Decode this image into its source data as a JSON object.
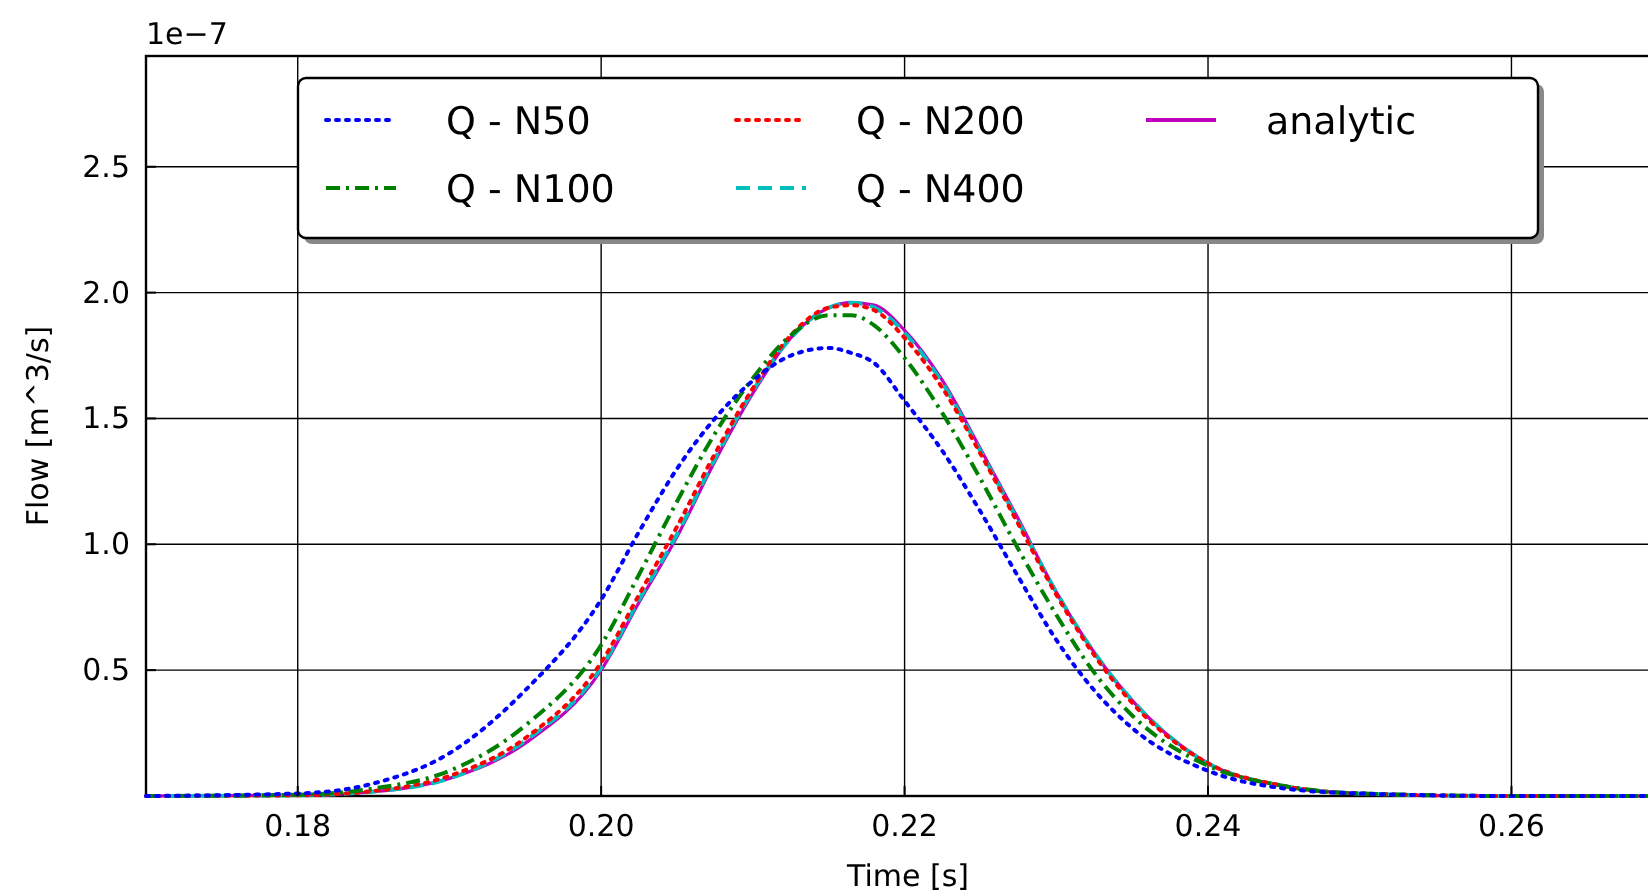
{
  "chart_data": {
    "type": "line",
    "xlabel": "Time [s]",
    "ylabel": "Flow [m^3/s]",
    "annotations": [
      "1e−7"
    ],
    "x": [
      0.17,
      0.18,
      0.185,
      0.19,
      0.195,
      0.2,
      0.2025,
      0.205,
      0.2075,
      0.21,
      0.2125,
      0.215,
      0.2165,
      0.218,
      0.22,
      0.2225,
      0.225,
      0.2275,
      0.23,
      0.2325,
      0.235,
      0.24,
      0.245,
      0.25,
      0.26,
      0.269
    ],
    "series": [
      {
        "name": "Q - N50",
        "color": "#0000ff",
        "line_style": "dotted",
        "values": [
          0,
          0.01,
          0.05,
          0.17,
          0.42,
          0.78,
          1.05,
          1.3,
          1.5,
          1.65,
          1.75,
          1.78,
          1.76,
          1.72,
          1.57,
          1.37,
          1.13,
          0.87,
          0.62,
          0.42,
          0.27,
          0.1,
          0.03,
          0.01,
          0,
          0
        ]
      },
      {
        "name": "Q - N100",
        "color": "#008000",
        "line_style": "dashdot",
        "values": [
          0,
          0.005,
          0.03,
          0.1,
          0.28,
          0.6,
          0.88,
          1.17,
          1.44,
          1.66,
          1.83,
          1.91,
          1.91,
          1.87,
          1.74,
          1.52,
          1.26,
          0.98,
          0.72,
          0.49,
          0.32,
          0.12,
          0.04,
          0.01,
          0,
          0
        ]
      },
      {
        "name": "Q - N200",
        "color": "#ff0000",
        "line_style": "dotted",
        "values": [
          0,
          0.003,
          0.02,
          0.08,
          0.23,
          0.53,
          0.8,
          1.07,
          1.36,
          1.62,
          1.83,
          1.94,
          1.95,
          1.93,
          1.82,
          1.62,
          1.36,
          1.08,
          0.8,
          0.56,
          0.37,
          0.13,
          0.04,
          0.01,
          0,
          0
        ]
      },
      {
        "name": "Q - N400",
        "color": "#00bfbf",
        "line_style": "dashed",
        "values": [
          0,
          0.003,
          0.018,
          0.07,
          0.22,
          0.51,
          0.78,
          1.04,
          1.34,
          1.61,
          1.82,
          1.94,
          1.96,
          1.94,
          1.84,
          1.64,
          1.37,
          1.09,
          0.81,
          0.57,
          0.38,
          0.13,
          0.04,
          0.01,
          0,
          0
        ]
      },
      {
        "name": "analytic",
        "color": "#bf00bf",
        "line_style": "solid",
        "values": [
          0,
          0.003,
          0.017,
          0.07,
          0.21,
          0.5,
          0.77,
          1.03,
          1.33,
          1.6,
          1.82,
          1.94,
          1.96,
          1.95,
          1.85,
          1.65,
          1.38,
          1.1,
          0.81,
          0.57,
          0.38,
          0.13,
          0.04,
          0.01,
          0,
          0
        ]
      }
    ],
    "xlim": [
      0.17,
      0.269
    ],
    "xticks": [
      0.18,
      {
        "value": 0.2,
        "label": "0.20"
      },
      0.22,
      0.24,
      0.26
    ],
    "ylim": [
      0,
      2.94
    ],
    "yticks": [
      0.5,
      {
        "value": 1,
        "label": "1.0"
      },
      1.5,
      {
        "value": 2,
        "label": "2.0"
      },
      2.5
    ],
    "grid": true,
    "legend": "top"
  }
}
